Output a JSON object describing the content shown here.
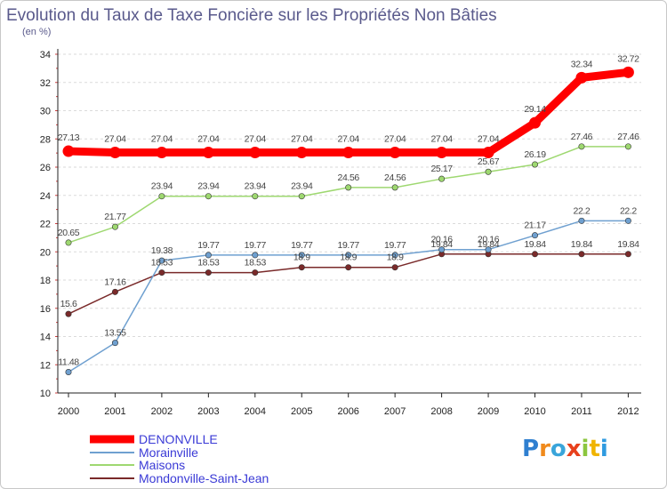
{
  "title": "Evolution du Taux de Taxe Foncière sur les Propriétés Non Bâties",
  "subtitle": "(en %)",
  "logo": {
    "letters": [
      "P",
      "r",
      "o",
      "x",
      "i",
      "t",
      "i"
    ],
    "colors": [
      "#2f7fd0",
      "#f08a1c",
      "#3aa5da",
      "#e8401c",
      "#8cc63f",
      "#f0b400",
      "#2f9be0"
    ]
  },
  "chart_data": {
    "type": "line",
    "title": "Evolution du Taux de Taxe Foncière sur les Propriétés Non Bâties",
    "ylabel": "(en %)",
    "xlabel": "",
    "ylim": [
      10,
      34
    ],
    "yticks": [
      "10",
      "12",
      "14",
      "16",
      "18",
      "20",
      "22",
      "24",
      "26",
      "28",
      "30",
      "32",
      "34"
    ],
    "categories": [
      "2000",
      "2001",
      "2002",
      "2003",
      "2004",
      "2005",
      "2006",
      "2007",
      "2008",
      "2009",
      "2010",
      "2011",
      "2012"
    ],
    "grid": "horizontal dashed",
    "legend": "bottom-left",
    "series": [
      {
        "name": "DENONVILLE",
        "color": "#ff0000",
        "values": [
          27.13,
          27.04,
          27.04,
          27.04,
          27.04,
          27.04,
          27.04,
          27.04,
          27.04,
          27.04,
          29.14,
          32.34,
          32.72
        ],
        "labels": [
          "27.13",
          "27.04",
          "27.04",
          "27.04",
          "27.04",
          "27.04",
          "27.04",
          "27.04",
          "27.04",
          "27.04",
          "29.14",
          "32.34",
          "32.72"
        ]
      },
      {
        "name": "Morainville",
        "color": "#6fa0d0",
        "values": [
          11.48,
          13.55,
          19.38,
          19.77,
          19.77,
          19.77,
          19.77,
          19.77,
          20.16,
          20.16,
          21.17,
          22.2,
          22.2
        ],
        "labels": [
          "11.48",
          "13.55",
          "19.38",
          "19.77",
          "19.77",
          "19.77",
          "19.77",
          "19.77",
          "20.16",
          "20.16",
          "21.17",
          "22.2",
          "22.2"
        ]
      },
      {
        "name": "Maisons",
        "color": "#9ed870",
        "values": [
          20.65,
          21.77,
          23.94,
          23.94,
          23.94,
          23.94,
          24.56,
          24.56,
          25.17,
          25.67,
          26.19,
          27.46,
          27.46
        ],
        "labels": [
          "20.65",
          "21.77",
          "23.94",
          "23.94",
          "23.94",
          "23.94",
          "24.56",
          "24.56",
          "25.17",
          "25.67",
          "26.19",
          "27.46",
          "27.46"
        ]
      },
      {
        "name": "Mondonville-Saint-Jean",
        "color": "#7a2a2a",
        "values": [
          15.6,
          17.16,
          18.53,
          18.53,
          18.53,
          18.9,
          18.9,
          18.9,
          19.84,
          19.84,
          19.84,
          19.84,
          19.84
        ],
        "labels": [
          "15.6",
          "17.16",
          "18.53",
          "18.53",
          "18.53",
          "18.9",
          "18.9",
          "18.9",
          "19.84",
          "19.84",
          "19.84",
          "19.84",
          "19.84"
        ]
      }
    ]
  }
}
